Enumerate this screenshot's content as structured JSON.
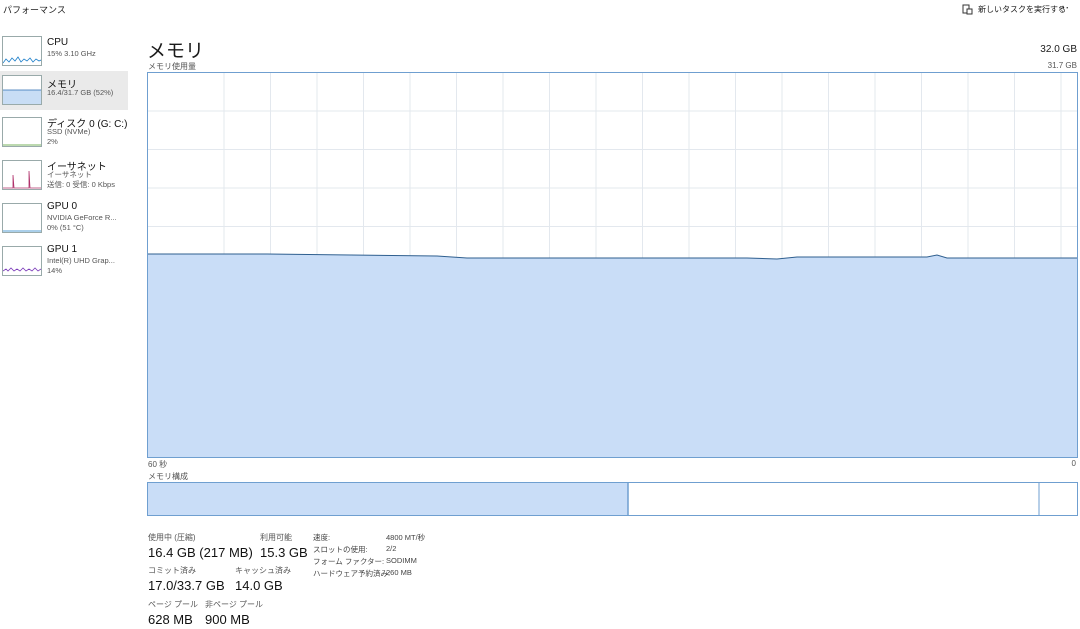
{
  "header": {
    "title": "パフォーマンス",
    "action": "新しいタスクを実行する",
    "more": "⋯"
  },
  "sidebar": [
    {
      "name": "CPU",
      "lines": [
        "15%  3.10 GHz"
      ]
    },
    {
      "name": "メモリ",
      "lines": [
        "16.4/31.7 GB (52%)"
      ]
    },
    {
      "name": "ディスク 0 (G: C:)",
      "lines": [
        "SSD (NVMe)",
        "2%"
      ]
    },
    {
      "name": "イーサネット",
      "lines": [
        "イーサネット",
        "送信: 0 受信: 0 Kbps"
      ]
    },
    {
      "name": "GPU 0",
      "lines": [
        "NVIDIA GeForce R...",
        "0%  (51 °C)"
      ]
    },
    {
      "name": "GPU 1",
      "lines": [
        "Intel(R) UHD Grap...",
        "14%"
      ]
    }
  ],
  "main": {
    "title": "メモリ",
    "capacity": "32.0 GB",
    "graph_label": "メモリ使用量",
    "graph_max": "31.7 GB",
    "time_start": "60 秒",
    "time_end": "0",
    "composition_label": "メモリ構成",
    "stats": [
      {
        "label": "使用中 (圧縮)",
        "value": "16.4 GB (217 MB)"
      },
      {
        "label": "利用可能",
        "value": "15.3 GB"
      },
      {
        "label": "コミット済み",
        "value": "17.0/33.7 GB"
      },
      {
        "label": "キャッシュ済み",
        "value": "14.0 GB"
      },
      {
        "label": "ページ プール",
        "value": "628 MB"
      },
      {
        "label": "非ページ プール",
        "value": "900 MB"
      }
    ],
    "properties": [
      {
        "label": "速度:",
        "value": "4800 MT/秒"
      },
      {
        "label": "スロットの使用:",
        "value": "2/2"
      },
      {
        "label": "フォーム ファクター:",
        "value": "SODIMM"
      },
      {
        "label": "ハードウェア予約済み:",
        "value": "260 MB"
      }
    ]
  }
}
